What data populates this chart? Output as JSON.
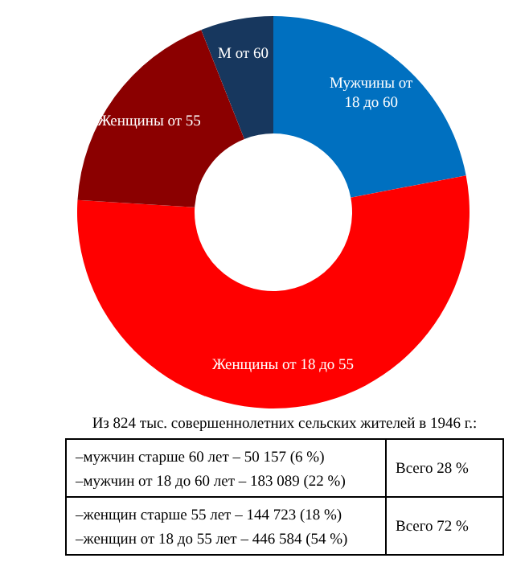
{
  "chart_data": {
    "type": "donut",
    "categories": [
      "М от 60",
      "Мужчины от 18 до 60",
      "Женщины от 18 до 55",
      "Женщины от 55"
    ],
    "values": [
      6,
      22,
      54,
      18
    ],
    "colors": [
      "#17375e",
      "#0070c0",
      "#ff0000",
      "#8b0000"
    ],
    "annotations": [
      "Из 824 тыс. совершеннолетних  сельских  жителей  в 1946 г.:",
      "–мужчин старше  60 лет – 50 157 (6 %)",
      "–мужчин от 18 до 60 лет – 183  089 (22 %)",
      "Всего 28 %",
      "–женщин старше  55 лет – 144 723  (18 %)",
      "–женщин от 18 до 55 лет – 446 584 (54 %)",
      "Всего 72 %"
    ]
  }
}
